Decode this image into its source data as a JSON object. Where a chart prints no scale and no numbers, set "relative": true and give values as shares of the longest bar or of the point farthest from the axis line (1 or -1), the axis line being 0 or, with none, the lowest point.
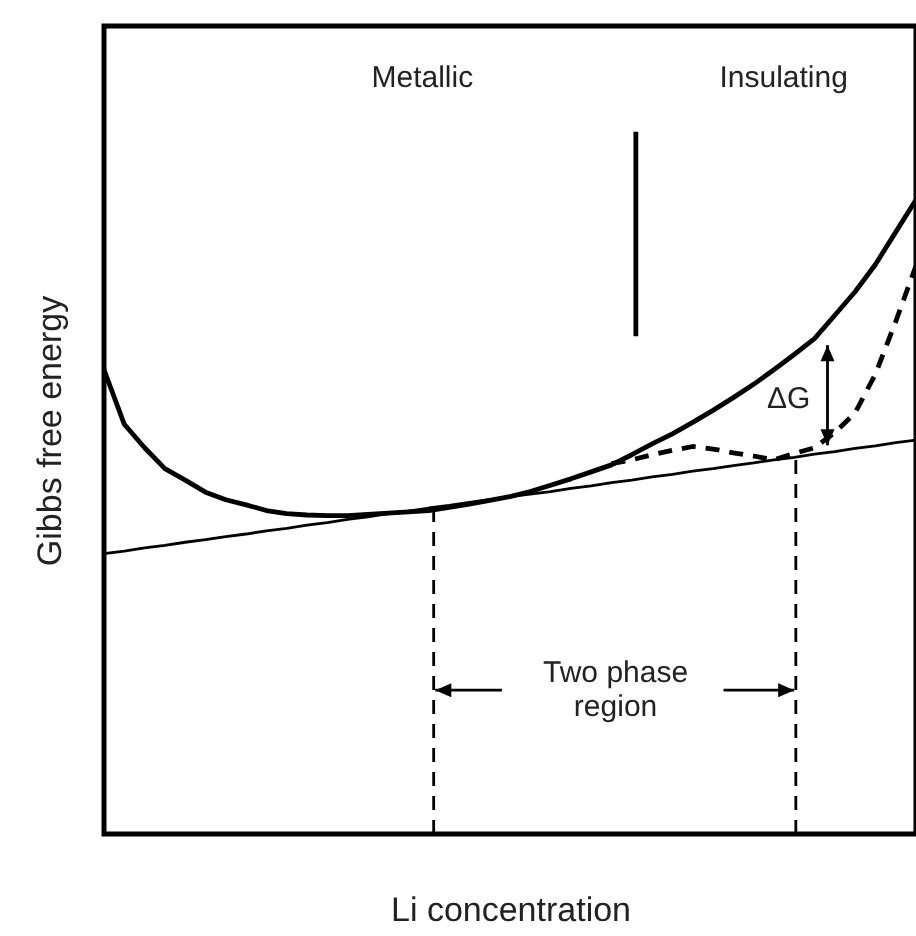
{
  "chart_data": {
    "type": "line",
    "relative": true,
    "xlabel": "Li concentration",
    "ylabel": "Gibbs free energy",
    "grid": false,
    "categories": [
      null,
      null,
      null,
      null,
      null,
      null,
      null,
      null,
      null,
      null,
      null,
      null,
      null,
      null,
      null,
      null,
      null,
      null,
      null,
      null,
      null,
      null,
      null,
      null,
      null,
      null,
      null,
      null,
      null,
      null,
      null,
      null,
      null,
      null,
      null,
      null,
      null,
      null,
      null,
      null,
      null
    ],
    "series": [
      {
        "color": "#000000",
        "line_style": "solid",
        "values": [
          0.732,
          0.646,
          0.609,
          0.576,
          0.558,
          0.539,
          0.527,
          0.519,
          0.51,
          0.505,
          0.503,
          0.502,
          0.502,
          0.504,
          0.506,
          0.508,
          0.51,
          0.515,
          0.52,
          0.526,
          0.532,
          0.54,
          0.55,
          0.56,
          0.571,
          0.582,
          0.598,
          0.615,
          0.631,
          0.649,
          0.668,
          0.688,
          0.709,
          0.732,
          0.756,
          0.781,
          0.818,
          0.855,
          0.898,
          0.949,
          1
        ]
      },
      {
        "color": "#000000",
        "line_style": "solid",
        "values": [
          0.442,
          0.446,
          0.451,
          0.455,
          0.46,
          0.464,
          0.469,
          0.473,
          0.478,
          0.482,
          0.487,
          0.491,
          0.496,
          0.5,
          0.505,
          0.509,
          0.514,
          0.518,
          0.523,
          0.527,
          0.532,
          0.536,
          0.54,
          0.545,
          0.549,
          0.554,
          0.558,
          0.563,
          0.567,
          0.572,
          0.576,
          0.581,
          0.585,
          0.59,
          0.594,
          0.599,
          0.603,
          0.608,
          0.612,
          0.617,
          0.621
        ]
      },
      {
        "color": "#000000",
        "line_style": "dashed",
        "values": [
          null,
          null,
          null,
          null,
          null,
          null,
          null,
          null,
          null,
          null,
          null,
          null,
          null,
          null,
          null,
          null,
          null,
          null,
          null,
          null,
          null,
          null,
          null,
          null,
          null,
          0.584,
          0.59,
          0.598,
          0.605,
          0.611,
          0.607,
          0.601,
          0.596,
          0.59,
          0.6,
          0.609,
          0.633,
          0.664,
          0.725,
          0.808,
          0.896
        ]
      }
    ],
    "annotations": [
      "Metallic",
      "Insulating",
      "ΔG",
      "Two phase\nregion"
    ]
  }
}
